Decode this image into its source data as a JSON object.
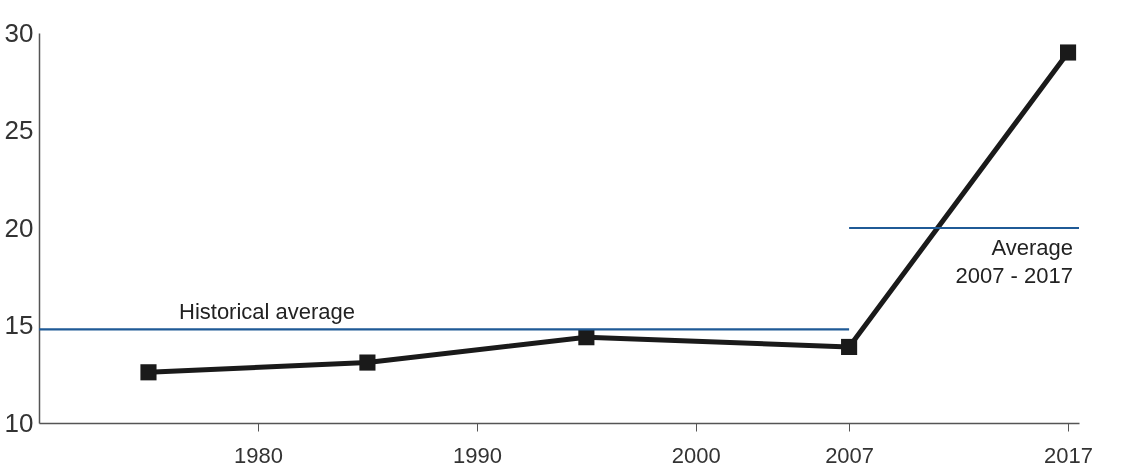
{
  "chart_data": {
    "type": "line",
    "xlim": [
      1970,
      2017.5
    ],
    "ylim": [
      10,
      30
    ],
    "yticks": [
      10,
      15,
      20,
      25,
      30
    ],
    "xticks": [
      1980,
      1990,
      2000,
      2007,
      2017
    ],
    "grid": false,
    "legend": false,
    "series": [
      {
        "color": "#1a1a1a",
        "marker": "square",
        "x": [
          1975,
          1985,
          1995,
          2007,
          2017
        ],
        "values": [
          12.6,
          13.1,
          14.4,
          13.9,
          29
        ]
      },
      {
        "name": "Historical average",
        "color": "#1f5a96",
        "marker": "none",
        "x": [
          1970,
          2007
        ],
        "values": [
          14.8,
          14.8
        ]
      },
      {
        "name": "Average\n2007 - 2017",
        "color": "#1f5a96",
        "marker": "none",
        "x": [
          2007,
          2017.5
        ],
        "values": [
          20,
          20
        ]
      }
    ]
  }
}
